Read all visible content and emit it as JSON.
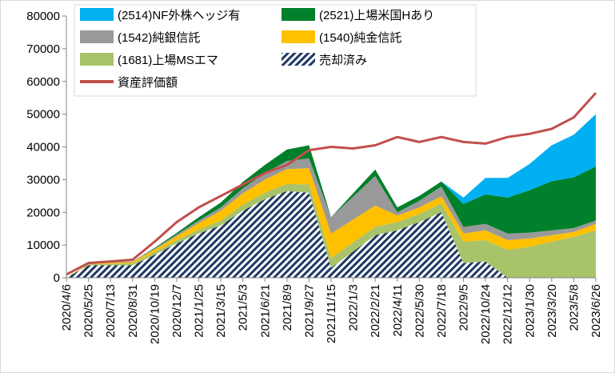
{
  "chart_data": {
    "type": "area",
    "stacked": true,
    "title": "",
    "xlabel": "",
    "ylabel": "",
    "ylim": [
      0,
      80000
    ],
    "yticks": [
      0,
      10000,
      20000,
      30000,
      40000,
      50000,
      60000,
      70000,
      80000
    ],
    "ytick_labels": [
      "0",
      "10000",
      "20000",
      "30000",
      "40000",
      "50000",
      "60000",
      "70000",
      "80000"
    ],
    "grid": false,
    "legend_position": "top-left inside",
    "x": [
      "2020/4/6",
      "2020/5/25",
      "2020/7/13",
      "2020/8/31",
      "2020/10/19",
      "2020/12/7",
      "2021/1/25",
      "2021/3/15",
      "2021/5/3",
      "2021/6/21",
      "2021/8/9",
      "2021/9/27",
      "2021/11/15",
      "2022/1/3",
      "2022/2/21",
      "2022/4/11",
      "2022/5/30",
      "2022/7/18",
      "2022/9/5",
      "2022/10/24",
      "2022/12/12",
      "2023/1/30",
      "2023/3/20",
      "2023/5/8",
      "2023/6/26"
    ],
    "series": [
      {
        "name": "売却済み",
        "color": "#1f3864",
        "pattern": "diagonal-hatch",
        "values": [
          0,
          3800,
          3800,
          3800,
          7000,
          10500,
          13500,
          16000,
          20500,
          24000,
          26500,
          26000,
          3000,
          8000,
          13000,
          14500,
          17000,
          20000,
          4500,
          5000,
          0,
          0,
          0,
          0,
          0
        ]
      },
      {
        "name": "(1681)上場MSエマ",
        "color": "#a9c36a",
        "values": [
          0,
          300,
          500,
          600,
          800,
          1000,
          1200,
          1500,
          1800,
          2000,
          2200,
          2500,
          3000,
          2800,
          2600,
          2500,
          2500,
          2700,
          6500,
          6500,
          8500,
          9500,
          11000,
          12500,
          14500
        ]
      },
      {
        "name": "(1540)純金信託",
        "color": "#ffc000",
        "values": [
          0,
          200,
          300,
          400,
          800,
          1200,
          2000,
          3000,
          3500,
          4000,
          4500,
          5000,
          7500,
          7000,
          6500,
          2000,
          2000,
          2200,
          2500,
          3000,
          3000,
          2500,
          2000,
          1500,
          2000
        ]
      },
      {
        "name": "(1542)純銀信託",
        "color": "#999999",
        "values": [
          0,
          100,
          200,
          200,
          300,
          500,
          800,
          1000,
          1500,
          2000,
          2500,
          3000,
          5000,
          7000,
          9000,
          1000,
          2000,
          3000,
          2000,
          2000,
          2000,
          1800,
          1500,
          1200,
          1000
        ]
      },
      {
        "name": "(2521)上場米国Hあり",
        "color": "#00802a",
        "values": [
          0,
          0,
          0,
          0,
          200,
          500,
          1000,
          1500,
          2000,
          2500,
          3500,
          4000,
          0,
          1000,
          2000,
          1500,
          1500,
          1500,
          7000,
          9000,
          11000,
          13000,
          15000,
          15500,
          16500
        ]
      },
      {
        "name": "(2514)NF外株ヘッジ有",
        "color": "#00b0f0",
        "values": [
          0,
          0,
          0,
          0,
          0,
          0,
          0,
          0,
          0,
          0,
          0,
          0,
          0,
          0,
          0,
          0,
          0,
          0,
          2000,
          5000,
          6000,
          8000,
          11000,
          13000,
          16000
        ]
      }
    ],
    "line_series": {
      "name": "資産評価額",
      "color": "#c0504d",
      "values": [
        1000,
        4500,
        5000,
        5500,
        11000,
        17000,
        21500,
        25000,
        28500,
        32000,
        34500,
        39000,
        40000,
        39500,
        40500,
        43000,
        41500,
        43000,
        41500,
        41000,
        43000,
        44000,
        45500,
        49000,
        56500
      ]
    }
  },
  "legend": {
    "items": [
      {
        "label": "(2514)NF外株ヘッジ有",
        "color": "#00b0f0"
      },
      {
        "label": "(2521)上場米国Hあり",
        "color": "#00802a"
      },
      {
        "label": "(1542)純銀信託",
        "color": "#999999"
      },
      {
        "label": "(1540)純金信託",
        "color": "#ffc000"
      },
      {
        "label": "(1681)上場MSエマ",
        "color": "#a9c36a"
      },
      {
        "label": "売却済み",
        "color": "#1f3864"
      },
      {
        "label": "資産評価額",
        "color": "#c0504d"
      }
    ]
  }
}
